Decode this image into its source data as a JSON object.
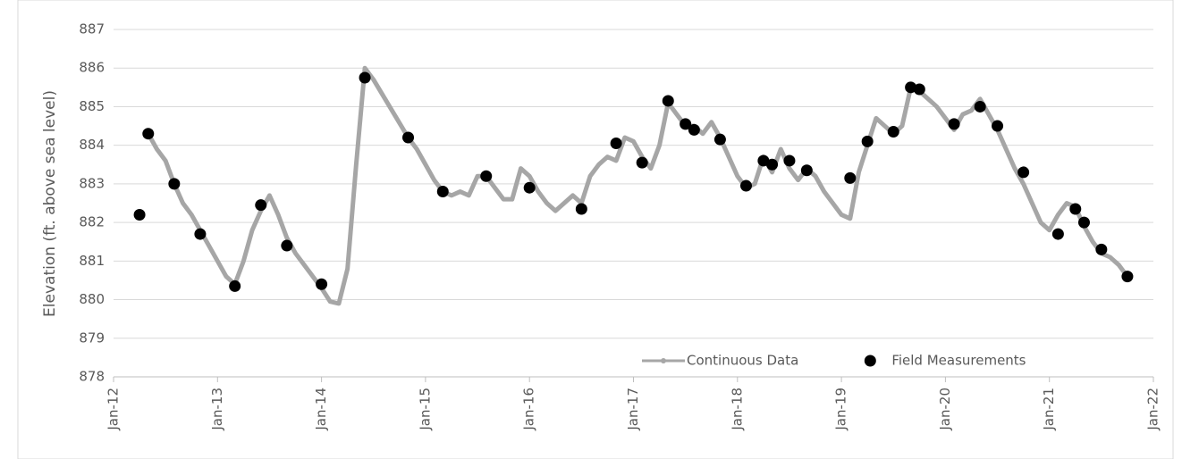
{
  "chart_data": {
    "type": "line",
    "y_label": "Elevation (ft. above sea level)",
    "xlim": [
      "2012-01",
      "2022-01"
    ],
    "xticks": [
      {
        "value": "2012-01",
        "label": "Jan-12"
      },
      {
        "value": "2013-01",
        "label": "Jan-13"
      },
      {
        "value": "2014-01",
        "label": "Jan-14"
      },
      {
        "value": "2015-01",
        "label": "Jan-15"
      },
      {
        "value": "2016-01",
        "label": "Jan-16"
      },
      {
        "value": "2017-01",
        "label": "Jan-17"
      },
      {
        "value": "2018-01",
        "label": "Jan-18"
      },
      {
        "value": "2019-01",
        "label": "Jan-19"
      },
      {
        "value": "2020-01",
        "label": "Jan-20"
      },
      {
        "value": "2021-01",
        "label": "Jan-21"
      },
      {
        "value": "2022-01",
        "label": "Jan-22"
      }
    ],
    "ylim": [
      878,
      887
    ],
    "yticks": [
      878,
      879,
      880,
      881,
      882,
      883,
      884,
      885,
      886,
      887
    ],
    "grid": true,
    "legend": "lower right",
    "series": [
      {
        "name": "Continuous Data",
        "color": "#a6a6a6",
        "style": "line",
        "x": [
          "2012-05",
          "2012-06",
          "2012-07",
          "2012-08",
          "2012-09",
          "2012-10",
          "2012-11",
          "2012-12",
          "2013-01",
          "2013-02",
          "2013-03",
          "2013-04",
          "2013-05",
          "2013-06",
          "2013-07",
          "2013-08",
          "2013-09",
          "2013-10",
          "2013-11",
          "2013-12",
          "2014-01",
          "2014-02",
          "2014-03",
          "2014-04",
          "2014-05",
          "2014-06",
          "2014-07",
          "2014-11",
          "2014-12",
          "2015-01",
          "2015-02",
          "2015-03",
          "2015-04",
          "2015-05",
          "2015-06",
          "2015-07",
          "2015-08",
          "2015-09",
          "2015-10",
          "2015-11",
          "2015-12",
          "2016-01",
          "2016-02",
          "2016-03",
          "2016-04",
          "2016-05",
          "2016-06",
          "2016-07",
          "2016-08",
          "2016-09",
          "2016-10",
          "2016-11",
          "2016-12",
          "2017-01",
          "2017-02",
          "2017-03",
          "2017-04",
          "2017-05",
          "2017-06",
          "2017-07",
          "2017-08",
          "2017-09",
          "2017-10",
          "2017-11",
          "2017-12",
          "2018-01",
          "2018-02",
          "2018-03",
          "2018-04",
          "2018-05",
          "2018-06",
          "2018-07",
          "2018-08",
          "2018-09",
          "2018-10",
          "2018-11",
          "2018-12",
          "2019-01",
          "2019-02",
          "2019-03",
          "2019-04",
          "2019-05",
          "2019-06",
          "2019-07",
          "2019-08",
          "2019-09",
          "2019-10",
          "2019-11",
          "2019-12",
          "2020-01",
          "2020-02",
          "2020-03",
          "2020-04",
          "2020-05",
          "2020-06",
          "2020-07",
          "2020-08",
          "2020-09",
          "2020-10",
          "2020-11",
          "2020-12",
          "2021-01",
          "2021-02",
          "2021-03",
          "2021-04",
          "2021-05",
          "2021-06",
          "2021-07",
          "2021-08",
          "2021-09",
          "2021-10"
        ],
        "values": [
          884.3,
          883.9,
          883.6,
          883.0,
          882.5,
          882.2,
          881.8,
          881.4,
          881.0,
          880.6,
          880.4,
          881.0,
          881.8,
          882.3,
          882.7,
          882.2,
          881.6,
          881.2,
          880.9,
          880.6,
          880.3,
          879.95,
          879.9,
          880.8,
          883.5,
          886.0,
          885.7,
          884.2,
          883.9,
          883.5,
          883.1,
          882.8,
          882.7,
          882.8,
          882.7,
          883.2,
          883.2,
          882.9,
          882.6,
          882.6,
          883.4,
          883.2,
          882.8,
          882.5,
          882.3,
          882.5,
          882.7,
          882.5,
          883.2,
          883.5,
          883.7,
          883.6,
          884.2,
          884.1,
          883.7,
          883.4,
          884.0,
          885.1,
          884.8,
          884.5,
          884.5,
          884.3,
          884.6,
          884.2,
          883.7,
          883.2,
          882.9,
          883.0,
          883.7,
          883.3,
          883.9,
          883.4,
          883.1,
          883.4,
          883.2,
          882.8,
          882.5,
          882.2,
          882.1,
          883.3,
          884.0,
          884.7,
          884.5,
          884.3,
          884.5,
          885.5,
          885.4,
          885.2,
          885.0,
          884.7,
          884.4,
          884.8,
          884.9,
          885.2,
          884.8,
          884.4,
          883.9,
          883.4,
          883.0,
          882.5,
          882.0,
          881.8,
          882.2,
          882.5,
          882.4,
          881.9,
          881.5,
          881.2,
          881.1,
          880.9,
          880.6
        ]
      },
      {
        "name": "Field Measurements",
        "color": "#000000",
        "style": "scatter",
        "x": [
          "2012-04",
          "2012-05",
          "2012-08",
          "2012-11",
          "2013-03",
          "2013-06",
          "2013-09",
          "2014-01",
          "2014-06",
          "2014-11",
          "2015-03",
          "2015-08",
          "2016-01",
          "2016-07",
          "2016-11",
          "2017-02",
          "2017-05",
          "2017-07",
          "2017-08",
          "2017-11",
          "2018-02",
          "2018-04",
          "2018-05",
          "2018-07",
          "2018-09",
          "2019-02",
          "2019-04",
          "2019-07",
          "2019-09",
          "2019-10",
          "2020-02",
          "2020-05",
          "2020-07",
          "2020-10",
          "2021-02",
          "2021-04",
          "2021-05",
          "2021-07",
          "2021-10"
        ],
        "values": [
          882.2,
          884.3,
          883.0,
          881.7,
          880.35,
          882.45,
          881.4,
          880.4,
          885.75,
          884.2,
          882.8,
          883.2,
          882.9,
          882.35,
          884.05,
          883.55,
          885.15,
          884.55,
          884.4,
          884.15,
          882.95,
          883.6,
          883.5,
          883.6,
          883.35,
          883.15,
          884.1,
          884.35,
          885.5,
          885.45,
          884.55,
          885.0,
          884.5,
          883.3,
          881.7,
          882.35,
          882.0,
          881.3,
          880.6
        ]
      }
    ]
  }
}
